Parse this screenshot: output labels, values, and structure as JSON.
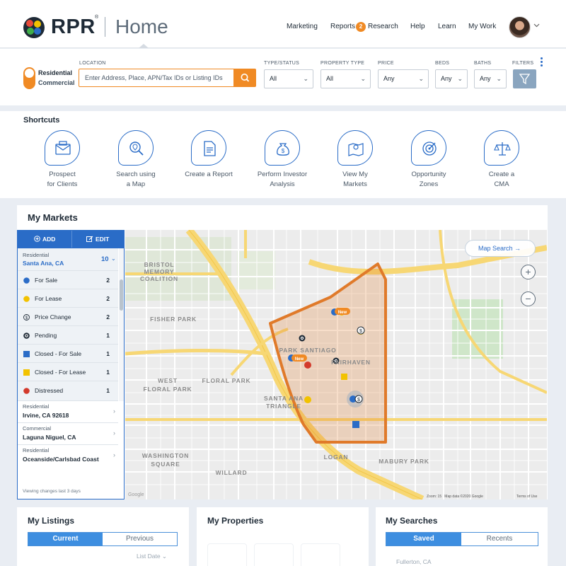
{
  "header": {
    "brand": "RPR",
    "brand_mark": "®",
    "section": "Home",
    "nav": [
      "Marketing",
      "Reports",
      "Research",
      "Help",
      "Learn",
      "My Work"
    ],
    "reports_badge": "2",
    "avatar_icon": "user-avatar",
    "caret": "⌄"
  },
  "search": {
    "toggle_on": "Residential",
    "toggle_off": "Commercial",
    "location_label": "LOCATION",
    "location_placeholder": "Enter Address, Place, APN/Tax IDs or Listing IDs",
    "type_label": "TYPE/STATUS",
    "type_value": "All",
    "ptype_label": "PROPERTY TYPE",
    "ptype_value": "All",
    "price_label": "PRICE",
    "price_value": "Any",
    "beds_label": "BEDS",
    "beds_value": "Any",
    "baths_label": "BATHS",
    "baths_value": "Any",
    "filters_label": "FILTERS",
    "accent": "#f08a24"
  },
  "shortcuts": {
    "title": "Shortcuts",
    "items": [
      {
        "label": "Prospect\nfor Clients",
        "icon": "prospect-icon"
      },
      {
        "label": "Search using\na Map",
        "icon": "map-search-icon"
      },
      {
        "label": "Create a Report",
        "icon": "report-icon"
      },
      {
        "label": "Perform Investor\nAnalysis",
        "icon": "money-bag-icon"
      },
      {
        "label": "View My\nMarkets",
        "icon": "markets-map-icon"
      },
      {
        "label": "Opportunity\nZones",
        "icon": "target-icon"
      },
      {
        "label": "Create a\nCMA",
        "icon": "scale-icon"
      }
    ]
  },
  "markets": {
    "title": "My Markets",
    "add_label": "ADD",
    "edit_label": "EDIT",
    "selected": {
      "type": "Residential",
      "location": "Santa Ana, CA",
      "count": "10"
    },
    "legend": [
      {
        "name": "For Sale",
        "count": "2",
        "color": "#2a6cc7",
        "shape": "circle"
      },
      {
        "name": "For Lease",
        "count": "2",
        "color": "#f2c200",
        "shape": "circle"
      },
      {
        "name": "Price Change",
        "count": "2",
        "color": "#1e2a36",
        "shape": "dollar-circle"
      },
      {
        "name": "Pending",
        "count": "1",
        "color": "#1e2a36",
        "shape": "ring"
      },
      {
        "name": "Closed - For Sale",
        "count": "1",
        "color": "#2a6cc7",
        "shape": "square"
      },
      {
        "name": "Closed - For Lease",
        "count": "1",
        "color": "#f2c200",
        "shape": "square"
      },
      {
        "name": "Distressed",
        "count": "1",
        "color": "#d33a2c",
        "shape": "circle"
      }
    ],
    "other_markets": [
      {
        "type": "Residential",
        "location": "Irvine, CA 92618"
      },
      {
        "type": "Commercial",
        "location": "Laguna Niguel, CA"
      },
      {
        "type": "Residential",
        "location": "Oceanside/Carlsbad Coast"
      }
    ],
    "footer": "Viewing changes last 3 days",
    "map": {
      "search_label": "Map Search",
      "zoom_in": "+",
      "zoom_out": "−",
      "attribution": "Map data ©2020 Google",
      "terms": "Terms of Use",
      "zoom_text": "Zoom: 15",
      "google": "Google",
      "area_labels": [
        "BRISTOL",
        "MEMORY",
        "COALITION",
        "FISHER PARK",
        "WEST",
        "FLORAL PARK",
        "FLORAL PARK",
        "PARK SANTIAGO",
        "FAIRHAVEN",
        "SANTA ANA",
        "TRIANGLE",
        "WASHINGTON",
        "SQUARE",
        "WILLARD",
        "LOGAN",
        "MABURY PARK"
      ],
      "badges": [
        "New",
        "New"
      ],
      "polygon_color": "#e07a2a"
    }
  },
  "cards": {
    "listings": {
      "title": "My Listings",
      "tab_on": "Current",
      "tab_off": "Previous",
      "sort": "List Date"
    },
    "properties": {
      "title": "My Properties"
    },
    "searches": {
      "title": "My Searches",
      "tab_on": "Saved",
      "tab_off": "Recents",
      "ghost": "Fullerton, CA"
    }
  }
}
